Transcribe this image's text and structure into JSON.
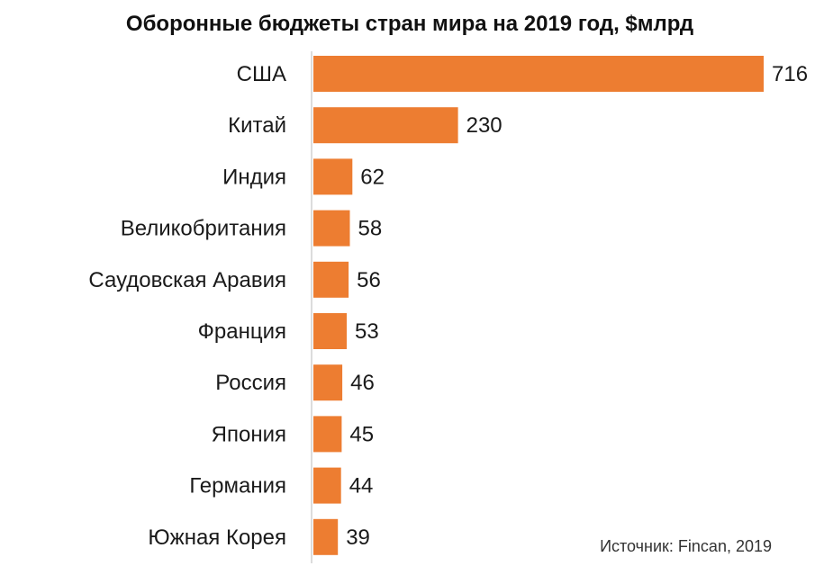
{
  "chart_data": {
    "type": "bar",
    "orientation": "horizontal",
    "title": "Оборонные бюджеты стран мира на 2019 год, $млрд",
    "categories": [
      "США",
      "Китай",
      "Индия",
      "Великобритания",
      "Саудовская Аравия",
      "Франция",
      "Россия",
      "Япония",
      "Германия",
      "Южная Корея"
    ],
    "values": [
      716,
      230,
      62,
      58,
      56,
      53,
      46,
      45,
      44,
      39
    ],
    "value_labels": [
      "716",
      "230",
      "62",
      "58",
      "56",
      "53",
      "46",
      "45",
      "44",
      "39"
    ],
    "xlim": [
      0,
      716
    ],
    "grid": false,
    "legend": "none",
    "bar_color": "#ED7D31"
  },
  "source_note": "Источник: Fincan, 2019"
}
